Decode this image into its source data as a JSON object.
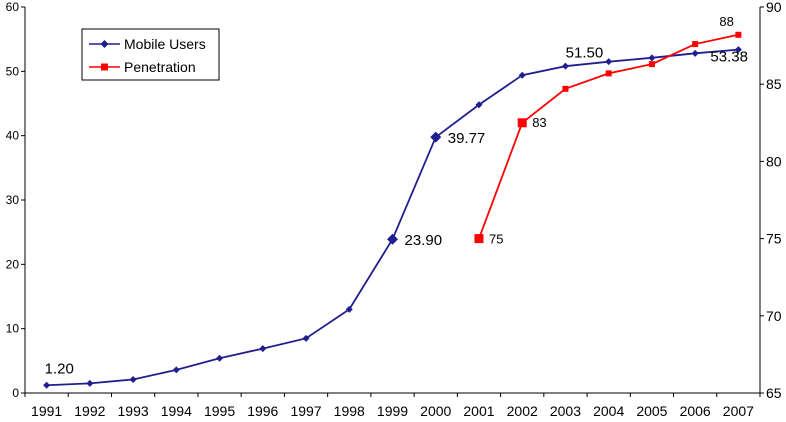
{
  "chart_data": {
    "type": "line",
    "title": "",
    "xlabel": "",
    "ylabel": "",
    "y2label": "",
    "categories": [
      "1991",
      "1992",
      "1993",
      "1994",
      "1995",
      "1996",
      "1997",
      "1998",
      "1999",
      "2000",
      "2001",
      "2002",
      "2003",
      "2004",
      "2005",
      "2006",
      "2007"
    ],
    "ylim": [
      0,
      60
    ],
    "y2lim": [
      65,
      90
    ],
    "y_ticks": [
      "0",
      "10",
      "20",
      "30",
      "40",
      "50",
      "60"
    ],
    "y2_ticks": [
      "65",
      "70",
      "75",
      "80",
      "85",
      "90"
    ],
    "grid": false,
    "legend_position": "top-left",
    "series": [
      {
        "name": "Mobile Users",
        "axis": "left",
        "color": "#1f1f8f",
        "marker": "diamond",
        "values": [
          1.2,
          1.5,
          2.1,
          3.6,
          5.4,
          6.9,
          8.5,
          13.0,
          23.9,
          39.77,
          44.8,
          49.4,
          50.8,
          51.5,
          52.1,
          52.8,
          53.38
        ],
        "labels": [
          {
            "index": 0,
            "text": "1.20"
          },
          {
            "index": 8,
            "text": "23.90"
          },
          {
            "index": 9,
            "text": "39.77"
          },
          {
            "index": 13,
            "text": "51.50"
          },
          {
            "index": 16,
            "text": "53.38"
          }
        ]
      },
      {
        "name": "Penetration",
        "axis": "right",
        "color": "#ff0000",
        "marker": "square",
        "x": [
          "2001",
          "2002",
          "2003",
          "2004",
          "2005",
          "2006",
          "2007"
        ],
        "values": [
          75,
          82.5,
          84.7,
          85.7,
          86.3,
          87.6,
          88.2
        ],
        "labels": [
          {
            "index": 0,
            "text": "75"
          },
          {
            "index": 1,
            "text": "83"
          },
          {
            "index": 6,
            "text": "88"
          }
        ]
      }
    ]
  }
}
